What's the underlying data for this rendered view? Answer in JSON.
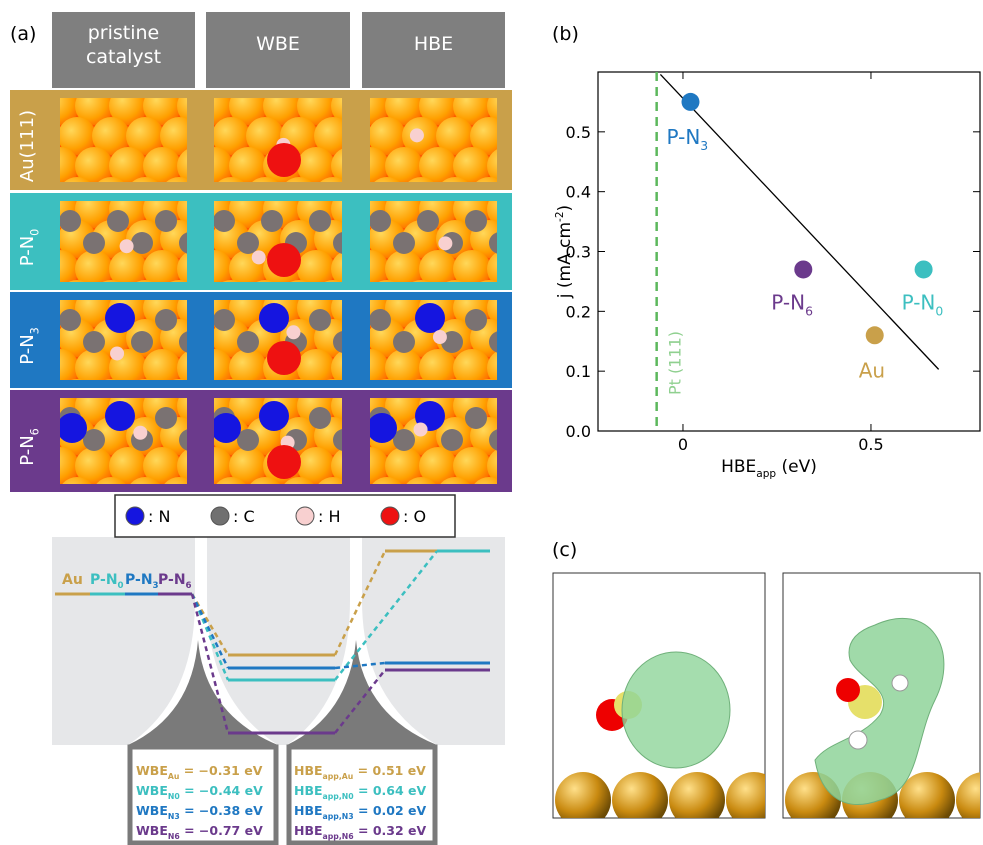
{
  "panel_a": {
    "label": "(a)",
    "columns": [
      [
        "pristine",
        "catalyst"
      ],
      [
        "WBE"
      ],
      [
        "HBE"
      ]
    ],
    "rows": [
      {
        "text": "Au(111)",
        "color": "#c9a04a"
      },
      {
        "text": "P-N",
        "sub": "0",
        "color": "#3cbfc0"
      },
      {
        "text": "P-N",
        "sub": "3",
        "color": "#1f78c2"
      },
      {
        "text": "P-N",
        "sub": "6",
        "color": "#6b3a8c"
      }
    ],
    "legend": [
      {
        "text": ": N",
        "color": "#1515e0"
      },
      {
        "text": ": C",
        "color": "#707070"
      },
      {
        "text": ": H",
        "color": "#f8d0d0"
      },
      {
        "text": ": O",
        "color": "#ee1111"
      }
    ],
    "diagram_labels": [
      {
        "text": "Au",
        "color": "#c9a04a"
      },
      {
        "text": "P-N",
        "sub": "0",
        "color": "#3cbfc0"
      },
      {
        "text": "P-N",
        "sub": "3",
        "color": "#1f78c2"
      },
      {
        "text": "P-N",
        "sub": "6",
        "color": "#6b3a8c"
      }
    ],
    "wbe_table": [
      {
        "text": "WBE",
        "sub": "Au",
        "value": " = −0.31 eV",
        "color": "#c9a04a"
      },
      {
        "text": "WBE",
        "sub": "N0",
        "value": " = −0.44 eV",
        "color": "#3cbfc0"
      },
      {
        "text": "WBE",
        "sub": "N3",
        "value": " = −0.38 eV",
        "color": "#1f78c2"
      },
      {
        "text": "WBE",
        "sub": "N6",
        "value": " = −0.77 eV",
        "color": "#6b3a8c"
      }
    ],
    "hbe_table": [
      {
        "text": "HBE",
        "sub": "app,Au",
        "value": " = 0.51 eV",
        "color": "#c9a04a"
      },
      {
        "text": "HBE",
        "sub": "app,N0",
        "value": " = 0.64 eV",
        "color": "#3cbfc0"
      },
      {
        "text": "HBE",
        "sub": "app,N3",
        "value": " = 0.02 eV",
        "color": "#1f78c2"
      },
      {
        "text": "HBE",
        "sub": "app,N6",
        "value": " = 0.32 eV",
        "color": "#6b3a8c"
      }
    ]
  },
  "chart_data": {
    "type": "scatter",
    "panel_label": "(b)",
    "xlabel": {
      "text": "HBE",
      "sub": "app",
      "suffix": " (eV)"
    },
    "ylabel": {
      "text": "j (mA cm",
      "sup": "-2",
      "suffix": ")"
    },
    "xlim": [
      -0.226,
      0.79
    ],
    "ylim": [
      0,
      0.6
    ],
    "xticks": [
      0,
      0.5
    ],
    "yticks": [
      {
        "value": 0,
        "label": "0.0"
      },
      0.1,
      0.2,
      0.3,
      0.4,
      0.5
    ],
    "series": [
      {
        "name": {
          "text": "P-N",
          "sub": "3"
        },
        "color": "#1f78c2",
        "x": [
          0.02
        ],
        "values": [
          0.55
        ]
      },
      {
        "name": {
          "text": "P-N",
          "sub": "6"
        },
        "color": "#6b3a8c",
        "x": [
          0.32
        ],
        "values": [
          0.27
        ]
      },
      {
        "name": {
          "text": "P-N",
          "sub": "0"
        },
        "color": "#3cbfc0",
        "x": [
          0.64
        ],
        "values": [
          0.27
        ]
      },
      {
        "name": {
          "text": "Au"
        },
        "color": "#c9a04a",
        "x": [
          0.51
        ],
        "values": [
          0.16
        ]
      }
    ],
    "fit_line": {
      "x": [
        -0.06,
        0.68
      ],
      "values": [
        0.596,
        0.103
      ],
      "color": "#000000"
    },
    "reference_line": {
      "x": -0.07,
      "label": "Pt (111)",
      "color": "#5cb85c"
    }
  },
  "panel_c": {
    "label": "(c)"
  }
}
